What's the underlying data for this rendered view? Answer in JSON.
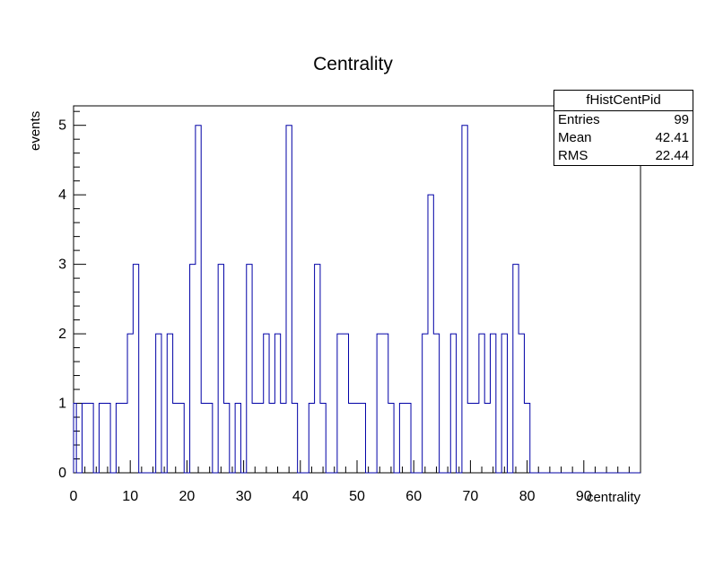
{
  "title": "Centrality",
  "stats_box": {
    "header": "fHistCentPid",
    "rows": [
      {
        "label": "Entries",
        "value": "99"
      },
      {
        "label": "Mean",
        "value": "42.41"
      },
      {
        "label": "RMS",
        "value": "22.44"
      }
    ]
  },
  "chart_data": {
    "type": "bar",
    "style": "step-outline-histogram",
    "title": "Centrality",
    "xlabel": "centrality",
    "ylabel": "events",
    "bin_width": 1,
    "first_bin_center": 0,
    "bin_edges_start": -0.5,
    "values": [
      1,
      0,
      1,
      1,
      0,
      1,
      1,
      0,
      1,
      1,
      2,
      3,
      0,
      0,
      0,
      2,
      0,
      2,
      1,
      1,
      0,
      3,
      5,
      1,
      1,
      0,
      3,
      1,
      0,
      1,
      0,
      3,
      1,
      1,
      2,
      1,
      2,
      1,
      5,
      1,
      0,
      0,
      1,
      3,
      1,
      0,
      0,
      2,
      2,
      1,
      1,
      1,
      0,
      0,
      2,
      2,
      1,
      0,
      1,
      1,
      0,
      0,
      2,
      4,
      2,
      0,
      0,
      2,
      0,
      5,
      1,
      1,
      2,
      1,
      2,
      0,
      2,
      0,
      3,
      2,
      1,
      0,
      0,
      0,
      0,
      0,
      0,
      0,
      0,
      0,
      0,
      0,
      0,
      0,
      0,
      0,
      0,
      0,
      0,
      0
    ],
    "xlim": [
      0,
      100
    ],
    "ylim": [
      0,
      5.28
    ],
    "x_major_ticks": [
      0,
      10,
      20,
      30,
      40,
      50,
      60,
      70,
      80,
      90
    ],
    "x_minor_tick_step": 2,
    "y_major_ticks": [
      0,
      1,
      2,
      3,
      4,
      5
    ],
    "y_minor_tick_step": 0.2,
    "grid": false,
    "legend_position": "none",
    "line_color": "#0000a6",
    "axis_color": "#000000"
  }
}
